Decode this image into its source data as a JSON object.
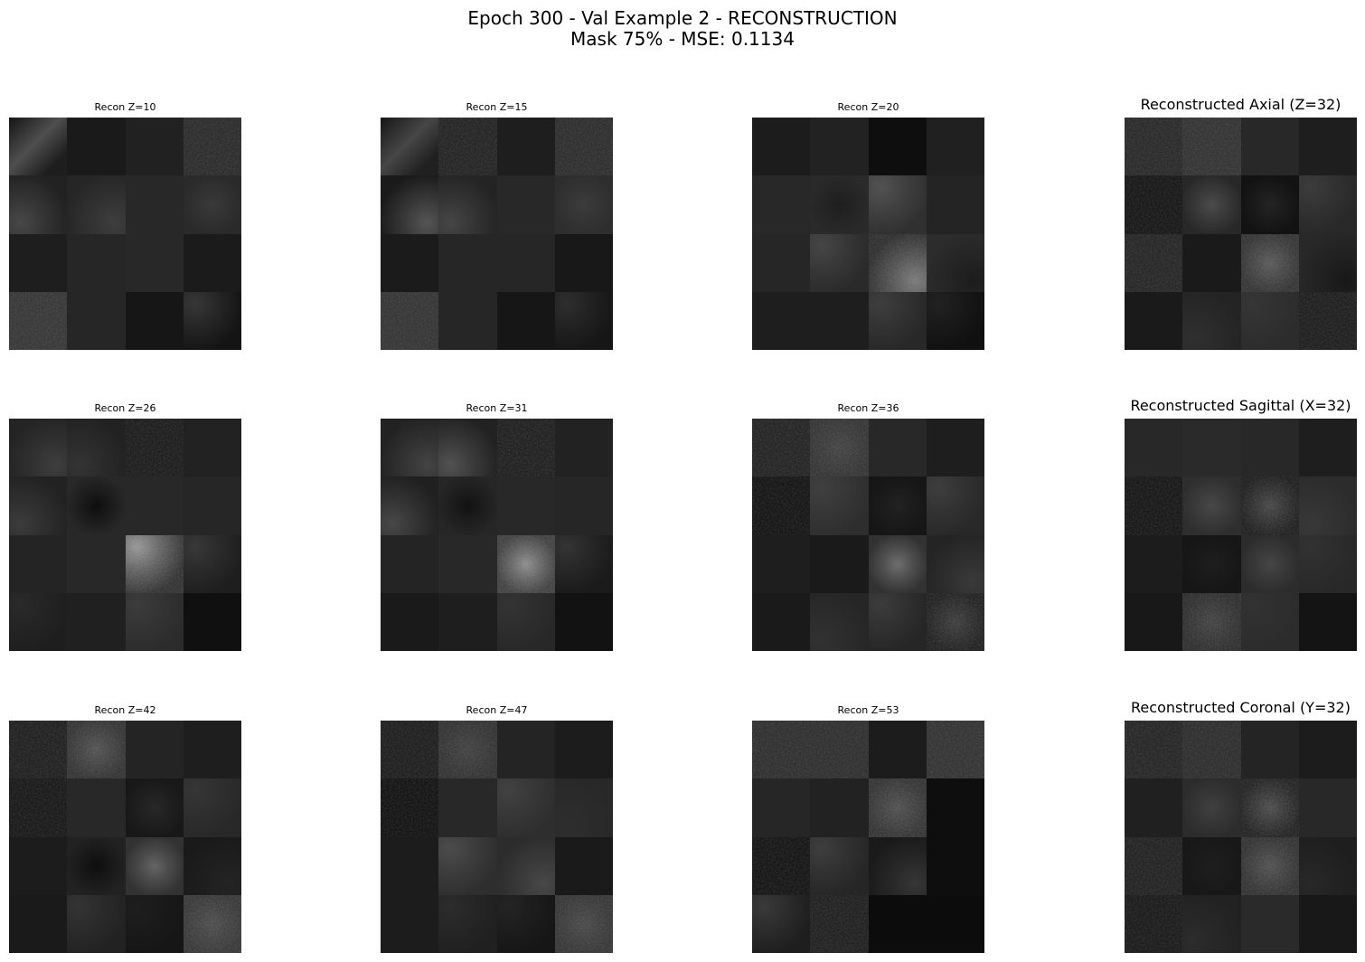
{
  "figure": {
    "title_line1": "Epoch 300 - Val Example 2 - RECONSTRUCTION",
    "title_line2": "Mask 75% - MSE: 0.1134"
  },
  "panels": [
    {
      "title": "Recon Z=10",
      "style": "small",
      "patches": [
        {
          "base": 30,
          "glow": 78,
          "grad": "diag"
        },
        {
          "base": 26
        },
        {
          "base": 33
        },
        {
          "base": 36,
          "noise": true
        },
        {
          "base": 34,
          "glow": 72,
          "grad": "bl"
        },
        {
          "base": 38,
          "glow": 62,
          "grad": "br"
        },
        {
          "base": 40
        },
        {
          "base": 42,
          "glow": 58
        },
        {
          "base": 30
        },
        {
          "base": 38
        },
        {
          "base": 40
        },
        {
          "base": 27
        },
        {
          "base": 48,
          "noise": true
        },
        {
          "base": 38
        },
        {
          "base": 22
        },
        {
          "base": 20,
          "glow": 55,
          "grad": "tl"
        }
      ]
    },
    {
      "title": "Recon Z=15",
      "style": "small",
      "patches": [
        {
          "base": 32,
          "glow": 70,
          "grad": "diag"
        },
        {
          "base": 28,
          "noise": true
        },
        {
          "base": 30
        },
        {
          "base": 38,
          "noise": true
        },
        {
          "base": 26,
          "glow": 85,
          "grad": "br"
        },
        {
          "base": 36,
          "glow": 70,
          "grad": "bl"
        },
        {
          "base": 40
        },
        {
          "base": 46,
          "glow": 60
        },
        {
          "base": 27
        },
        {
          "base": 38
        },
        {
          "base": 38
        },
        {
          "base": 24
        },
        {
          "base": 46,
          "noise": true
        },
        {
          "base": 38
        },
        {
          "base": 22
        },
        {
          "base": 22,
          "glow": 46,
          "grad": "tl"
        }
      ]
    },
    {
      "title": "Recon Z=20",
      "style": "small",
      "patches": [
        {
          "base": 28
        },
        {
          "base": 34
        },
        {
          "base": 14
        },
        {
          "base": 32
        },
        {
          "base": 40
        },
        {
          "base": 42,
          "glow": 30
        },
        {
          "base": 48,
          "glow": 82,
          "grad": "tl"
        },
        {
          "base": 36
        },
        {
          "base": 38
        },
        {
          "base": 42,
          "glow": 70,
          "grad": "tl"
        },
        {
          "base": 40,
          "glow": 120,
          "grad": "br",
          "noise": true
        },
        {
          "base": 44,
          "glow": 28,
          "grad": "br"
        },
        {
          "base": 30
        },
        {
          "base": 30
        },
        {
          "base": 40,
          "glow": 62,
          "grad": "tl"
        },
        {
          "base": 16,
          "glow": 34,
          "grad": "tl"
        }
      ]
    },
    {
      "title": "Reconstructed Axial (Z=32)",
      "style": "large",
      "patches": [
        {
          "base": 34,
          "noise": true
        },
        {
          "base": 44,
          "noise": true
        },
        {
          "base": 40
        },
        {
          "base": 30
        },
        {
          "base": 14,
          "noise": true
        },
        {
          "base": 40,
          "glow": 75
        },
        {
          "base": 18,
          "glow": 36
        },
        {
          "base": 40,
          "glow": 60,
          "grad": "tl"
        },
        {
          "base": 30,
          "noise": true
        },
        {
          "base": 26
        },
        {
          "base": 46,
          "glow": 85,
          "noise": true
        },
        {
          "base": 40,
          "glow": 24,
          "grad": "br"
        },
        {
          "base": 26
        },
        {
          "base": 36,
          "glow": 48,
          "grad": "bl"
        },
        {
          "base": 44,
          "glow": 54,
          "grad": "tl"
        },
        {
          "base": 22,
          "noise": true
        }
      ]
    },
    {
      "title": "Recon Z=26",
      "style": "small",
      "patches": [
        {
          "base": 36,
          "glow": 62,
          "grad": "br"
        },
        {
          "base": 34,
          "glow": 52,
          "grad": "bl"
        },
        {
          "base": 20,
          "noise": true
        },
        {
          "base": 34
        },
        {
          "base": 34,
          "glow": 60,
          "grad": "bl"
        },
        {
          "base": 40,
          "glow": 14
        },
        {
          "base": 40
        },
        {
          "base": 38
        },
        {
          "base": 36
        },
        {
          "base": 40
        },
        {
          "base": 44,
          "glow": 150,
          "grad": "tl",
          "noise": true
        },
        {
          "base": 30,
          "glow": 56,
          "grad": "tl"
        },
        {
          "base": 30,
          "glow": 42,
          "grad": "tl"
        },
        {
          "base": 32
        },
        {
          "base": 44,
          "glow": 60,
          "grad": "tl"
        },
        {
          "base": 16
        }
      ]
    },
    {
      "title": "Recon Z=31",
      "style": "small",
      "patches": [
        {
          "base": 34,
          "glow": 68,
          "grad": "br"
        },
        {
          "base": 34,
          "glow": 82,
          "grad": "bl"
        },
        {
          "base": 24,
          "noise": true
        },
        {
          "base": 34
        },
        {
          "base": 32,
          "glow": 72,
          "grad": "bl"
        },
        {
          "base": 38,
          "glow": 18
        },
        {
          "base": 40
        },
        {
          "base": 38
        },
        {
          "base": 36
        },
        {
          "base": 40
        },
        {
          "base": 60,
          "glow": 140,
          "noise": true
        },
        {
          "base": 26,
          "glow": 52,
          "grad": "tl"
        },
        {
          "base": 26
        },
        {
          "base": 30
        },
        {
          "base": 40,
          "glow": 52,
          "grad": "tl"
        },
        {
          "base": 18
        }
      ]
    },
    {
      "title": "Recon Z=36",
      "style": "small",
      "patches": [
        {
          "base": 28,
          "noise": true
        },
        {
          "base": 46,
          "glow": 62,
          "noise": true
        },
        {
          "base": 40
        },
        {
          "base": 30
        },
        {
          "base": 12,
          "noise": true
        },
        {
          "base": 46,
          "glow": 64,
          "grad": "tl"
        },
        {
          "base": 22,
          "glow": 34
        },
        {
          "base": 40,
          "glow": 62,
          "grad": "tl"
        },
        {
          "base": 30
        },
        {
          "base": 26
        },
        {
          "base": 50,
          "glow": 110
        },
        {
          "base": 36,
          "glow": 58,
          "grad": "br"
        },
        {
          "base": 26
        },
        {
          "base": 38,
          "glow": 50,
          "grad": "bl"
        },
        {
          "base": 38,
          "glow": 60,
          "grad": "tl"
        },
        {
          "base": 26,
          "glow": 56,
          "noise": true
        }
      ]
    },
    {
      "title": "Reconstructed Sagittal (X=32)",
      "style": "large",
      "patches": [
        {
          "base": 40
        },
        {
          "base": 42
        },
        {
          "base": 40
        },
        {
          "base": 30
        },
        {
          "base": 14,
          "noise": true
        },
        {
          "base": 46,
          "glow": 72
        },
        {
          "base": 24,
          "glow": 66,
          "noise": true
        },
        {
          "base": 44,
          "glow": 56,
          "grad": "bl"
        },
        {
          "base": 28
        },
        {
          "base": 22,
          "glow": 30
        },
        {
          "base": 44,
          "glow": 70
        },
        {
          "base": 40,
          "glow": 50,
          "grad": "tl"
        },
        {
          "base": 24
        },
        {
          "base": 40,
          "glow": 62,
          "noise": true
        },
        {
          "base": 44,
          "glow": 50,
          "grad": "tl"
        },
        {
          "base": 20
        }
      ]
    },
    {
      "title": "Recon Z=42",
      "style": "small",
      "patches": [
        {
          "base": 24,
          "noise": true
        },
        {
          "base": 46,
          "glow": 78,
          "noise": true
        },
        {
          "base": 36
        },
        {
          "base": 30
        },
        {
          "base": 16,
          "noise": true
        },
        {
          "base": 40
        },
        {
          "base": 24,
          "glow": 40
        },
        {
          "base": 40,
          "glow": 54,
          "grad": "tl"
        },
        {
          "base": 28
        },
        {
          "base": 34,
          "glow": 14
        },
        {
          "base": 50,
          "glow": 100
        },
        {
          "base": 26,
          "glow": 36,
          "grad": "br"
        },
        {
          "base": 26
        },
        {
          "base": 34,
          "glow": 52,
          "grad": "tl"
        },
        {
          "base": 22,
          "glow": 30,
          "grad": "tl"
        },
        {
          "base": 50,
          "glow": 72,
          "noise": true
        }
      ]
    },
    {
      "title": "Recon Z=47",
      "style": "small",
      "patches": [
        {
          "base": 22,
          "noise": true
        },
        {
          "base": 44,
          "glow": 60,
          "noise": true
        },
        {
          "base": 36
        },
        {
          "base": 28
        },
        {
          "base": 10,
          "noise": true
        },
        {
          "base": 40
        },
        {
          "base": 46,
          "glow": 66,
          "grad": "tl"
        },
        {
          "base": 40,
          "glow": 46,
          "grad": "bl"
        },
        {
          "base": 28
        },
        {
          "base": 46,
          "glow": 76,
          "grad": "tl"
        },
        {
          "base": 44,
          "glow": 72,
          "grad": "br"
        },
        {
          "base": 26
        },
        {
          "base": 28
        },
        {
          "base": 32,
          "glow": 44,
          "grad": "tl"
        },
        {
          "base": 22,
          "glow": 36,
          "grad": "tl"
        },
        {
          "base": 48,
          "glow": 68,
          "noise": true
        }
      ]
    },
    {
      "title": "Recon Z=53",
      "style": "small",
      "patches": [
        {
          "base": 40,
          "noise": true
        },
        {
          "base": 40,
          "noise": true
        },
        {
          "base": 28
        },
        {
          "base": 44,
          "noise": true
        },
        {
          "base": 38
        },
        {
          "base": 34
        },
        {
          "base": 46,
          "glow": 76,
          "noise": true
        },
        {
          "base": 14
        },
        {
          "base": 12,
          "noise": true
        },
        {
          "base": 38,
          "glow": 62,
          "grad": "tl"
        },
        {
          "base": 26,
          "glow": 54,
          "grad": "br"
        },
        {
          "base": 14
        },
        {
          "base": 30,
          "glow": 58,
          "grad": "tl"
        },
        {
          "base": 24,
          "noise": true
        },
        {
          "base": 12
        },
        {
          "base": 12
        }
      ]
    },
    {
      "title": "Reconstructed Coronal (Y=32)",
      "style": "large",
      "patches": [
        {
          "base": 30,
          "noise": true
        },
        {
          "base": 38,
          "noise": true
        },
        {
          "base": 36
        },
        {
          "base": 28
        },
        {
          "base": 32
        },
        {
          "base": 44,
          "glow": 64
        },
        {
          "base": 28,
          "glow": 72,
          "noise": true
        },
        {
          "base": 40
        },
        {
          "base": 26,
          "noise": true
        },
        {
          "base": 24,
          "glow": 30
        },
        {
          "base": 44,
          "glow": 76,
          "noise": true
        },
        {
          "base": 30,
          "glow": 40,
          "grad": "bl"
        },
        {
          "base": 18,
          "noise": true
        },
        {
          "base": 34,
          "glow": 44,
          "grad": "bl"
        },
        {
          "base": 42
        },
        {
          "base": 24
        }
      ]
    }
  ]
}
